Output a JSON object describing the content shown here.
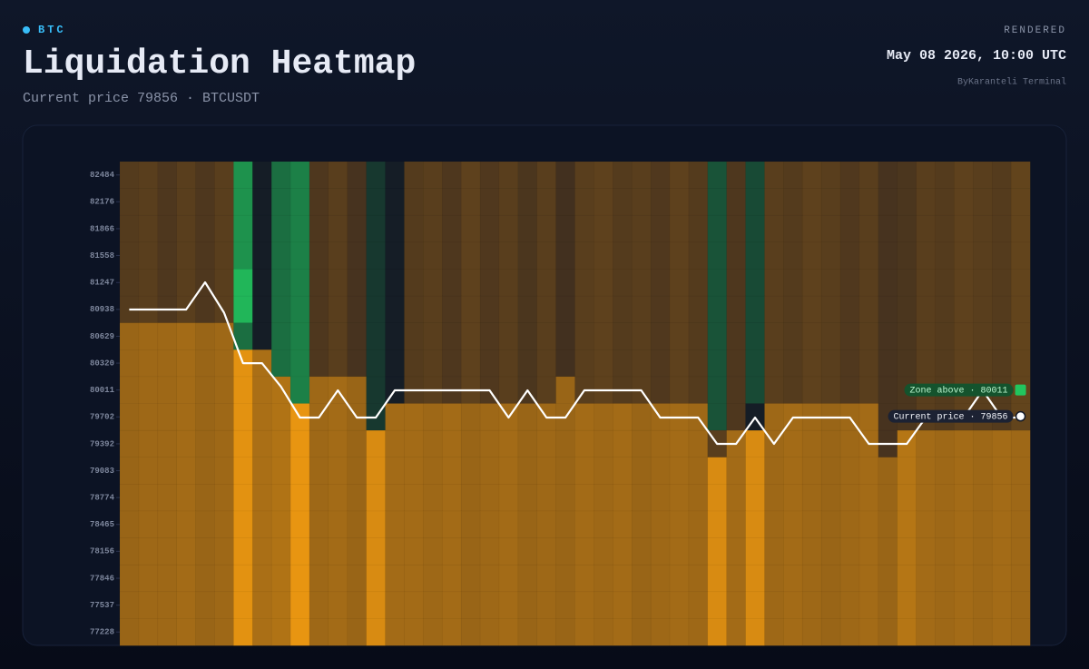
{
  "header": {
    "symbol": "BTC",
    "title": "Liquidation Heatmap",
    "subtitle": "Current price 79856 · BTCUSDT",
    "status": "RENDERED",
    "timestamp": "May 08 2026, 10:00 UTC",
    "source": "ByKaranteli Terminal"
  },
  "chart_data": {
    "type": "heatmap",
    "ylim": [
      77074,
      82638
    ],
    "yticks": [
      82484,
      82176,
      81866,
      81558,
      81247,
      80938,
      80629,
      80320,
      80011,
      79702,
      79392,
      79083,
      78774,
      78465,
      78156,
      77846,
      77537,
      77228
    ],
    "colorscale": {
      "zero": "#141423",
      "positive": "#faa00f",
      "negative": "#22c85f"
    },
    "z": [
      [
        28,
        30,
        25,
        30,
        25,
        30,
        -70,
        -5,
        -50,
        -60,
        25,
        30,
        22,
        -20,
        -5,
        28,
        30,
        25,
        32,
        26,
        30,
        24,
        30,
        20,
        30,
        32,
        28,
        30,
        26,
        32,
        28,
        -35,
        25,
        -30,
        30,
        28,
        32,
        30,
        26,
        30,
        22,
        24,
        30,
        28,
        32,
        30,
        28,
        34
      ],
      [
        28,
        30,
        25,
        30,
        25,
        30,
        -70,
        -5,
        -50,
        -60,
        25,
        30,
        22,
        -20,
        -5,
        28,
        30,
        25,
        32,
        26,
        30,
        24,
        30,
        20,
        30,
        32,
        28,
        30,
        26,
        32,
        28,
        -35,
        25,
        -30,
        30,
        28,
        32,
        30,
        26,
        30,
        22,
        24,
        30,
        28,
        32,
        30,
        28,
        34
      ],
      [
        28,
        30,
        25,
        30,
        25,
        30,
        -70,
        -5,
        -50,
        -60,
        25,
        30,
        22,
        -20,
        -5,
        28,
        30,
        25,
        32,
        26,
        30,
        24,
        30,
        20,
        30,
        32,
        28,
        30,
        26,
        32,
        28,
        -35,
        25,
        -30,
        30,
        28,
        32,
        30,
        26,
        30,
        22,
        24,
        30,
        28,
        32,
        30,
        28,
        34
      ],
      [
        28,
        30,
        25,
        30,
        25,
        30,
        -70,
        -5,
        -50,
        -60,
        25,
        30,
        22,
        -20,
        -5,
        28,
        30,
        25,
        32,
        26,
        30,
        24,
        30,
        20,
        30,
        32,
        28,
        30,
        26,
        32,
        28,
        -35,
        25,
        -30,
        30,
        28,
        32,
        30,
        26,
        30,
        22,
        24,
        30,
        28,
        32,
        30,
        28,
        34
      ],
      [
        28,
        30,
        25,
        30,
        25,
        30,
        -90,
        -5,
        -50,
        -60,
        25,
        30,
        22,
        -20,
        -5,
        28,
        30,
        25,
        32,
        26,
        30,
        24,
        30,
        20,
        30,
        32,
        28,
        30,
        26,
        32,
        28,
        -35,
        25,
        -30,
        30,
        28,
        32,
        30,
        26,
        30,
        22,
        24,
        30,
        28,
        32,
        30,
        28,
        34
      ],
      [
        28,
        30,
        25,
        30,
        25,
        30,
        -90,
        -5,
        -50,
        -60,
        25,
        30,
        22,
        -20,
        -5,
        28,
        30,
        25,
        32,
        26,
        30,
        24,
        30,
        20,
        30,
        32,
        28,
        30,
        26,
        32,
        28,
        -35,
        25,
        -30,
        30,
        28,
        32,
        30,
        26,
        30,
        22,
        24,
        30,
        28,
        32,
        30,
        28,
        34
      ],
      [
        58,
        60,
        60,
        62,
        58,
        60,
        -50,
        -5,
        -50,
        -60,
        25,
        30,
        22,
        -20,
        -5,
        28,
        30,
        25,
        32,
        26,
        30,
        24,
        30,
        20,
        30,
        32,
        28,
        30,
        26,
        32,
        28,
        -35,
        25,
        -30,
        30,
        28,
        32,
        30,
        26,
        30,
        22,
        24,
        30,
        28,
        32,
        30,
        28,
        34
      ],
      [
        58,
        60,
        60,
        62,
        58,
        60,
        90,
        65,
        -50,
        -60,
        25,
        30,
        22,
        -20,
        -5,
        28,
        30,
        25,
        32,
        26,
        30,
        24,
        30,
        20,
        30,
        32,
        28,
        30,
        26,
        32,
        28,
        -35,
        25,
        -30,
        30,
        28,
        32,
        30,
        26,
        30,
        22,
        24,
        30,
        28,
        32,
        30,
        28,
        34
      ],
      [
        58,
        60,
        60,
        62,
        58,
        60,
        90,
        65,
        68,
        -60,
        60,
        62,
        58,
        -20,
        -5,
        28,
        30,
        25,
        32,
        26,
        30,
        24,
        30,
        58,
        30,
        32,
        28,
        30,
        26,
        32,
        28,
        -35,
        25,
        -30,
        30,
        28,
        32,
        30,
        26,
        30,
        22,
        24,
        30,
        28,
        32,
        30,
        28,
        34
      ],
      [
        58,
        60,
        60,
        62,
        58,
        60,
        90,
        65,
        68,
        92,
        60,
        62,
        58,
        -20,
        62,
        62,
        60,
        62,
        58,
        60,
        62,
        58,
        60,
        58,
        62,
        60,
        62,
        58,
        60,
        62,
        60,
        -35,
        25,
        -5,
        60,
        62,
        60,
        58,
        60,
        62,
        22,
        24,
        30,
        28,
        32,
        30,
        28,
        34
      ],
      [
        58,
        60,
        60,
        62,
        58,
        60,
        90,
        65,
        68,
        92,
        60,
        62,
        58,
        85,
        62,
        62,
        60,
        62,
        58,
        60,
        62,
        58,
        60,
        58,
        62,
        60,
        62,
        58,
        60,
        62,
        60,
        30,
        62,
        85,
        60,
        62,
        60,
        58,
        60,
        62,
        22,
        70,
        62,
        60,
        62,
        60,
        62,
        60
      ],
      [
        58,
        60,
        60,
        62,
        58,
        60,
        90,
        65,
        68,
        92,
        60,
        62,
        58,
        85,
        62,
        62,
        60,
        62,
        58,
        60,
        62,
        58,
        60,
        58,
        62,
        60,
        62,
        58,
        60,
        62,
        60,
        85,
        62,
        85,
        60,
        62,
        60,
        58,
        60,
        62,
        58,
        70,
        62,
        60,
        62,
        60,
        62,
        60
      ],
      [
        58,
        60,
        60,
        62,
        58,
        60,
        90,
        65,
        68,
        92,
        60,
        62,
        58,
        85,
        62,
        62,
        60,
        62,
        58,
        60,
        62,
        58,
        60,
        58,
        62,
        60,
        62,
        58,
        60,
        62,
        60,
        85,
        62,
        85,
        60,
        62,
        60,
        58,
        60,
        62,
        58,
        70,
        62,
        60,
        62,
        60,
        62,
        60
      ],
      [
        58,
        60,
        60,
        62,
        58,
        60,
        90,
        65,
        68,
        92,
        60,
        62,
        58,
        85,
        62,
        62,
        60,
        62,
        58,
        60,
        62,
        58,
        60,
        58,
        62,
        60,
        62,
        58,
        60,
        62,
        60,
        85,
        62,
        85,
        60,
        62,
        60,
        58,
        60,
        62,
        58,
        70,
        62,
        60,
        62,
        60,
        62,
        60
      ],
      [
        58,
        60,
        60,
        62,
        58,
        60,
        90,
        65,
        68,
        92,
        60,
        62,
        58,
        85,
        62,
        62,
        60,
        62,
        58,
        60,
        62,
        58,
        60,
        58,
        62,
        60,
        62,
        58,
        60,
        62,
        60,
        85,
        62,
        85,
        60,
        62,
        60,
        58,
        60,
        62,
        58,
        70,
        62,
        60,
        62,
        60,
        62,
        60
      ],
      [
        58,
        60,
        60,
        62,
        58,
        60,
        90,
        65,
        68,
        92,
        60,
        62,
        58,
        85,
        62,
        62,
        60,
        62,
        58,
        60,
        62,
        58,
        60,
        58,
        62,
        60,
        62,
        58,
        60,
        62,
        60,
        85,
        62,
        85,
        60,
        62,
        60,
        58,
        60,
        62,
        58,
        70,
        62,
        60,
        62,
        60,
        62,
        60
      ],
      [
        58,
        60,
        60,
        62,
        58,
        60,
        90,
        65,
        68,
        92,
        60,
        62,
        58,
        85,
        62,
        62,
        60,
        62,
        58,
        60,
        62,
        58,
        60,
        58,
        62,
        60,
        62,
        58,
        60,
        62,
        60,
        85,
        62,
        85,
        60,
        62,
        60,
        58,
        60,
        62,
        58,
        70,
        62,
        60,
        62,
        60,
        62,
        60
      ],
      [
        58,
        60,
        60,
        62,
        58,
        60,
        90,
        65,
        68,
        92,
        60,
        62,
        58,
        85,
        62,
        62,
        60,
        62,
        58,
        60,
        62,
        58,
        60,
        58,
        62,
        60,
        62,
        58,
        60,
        62,
        60,
        85,
        62,
        85,
        60,
        62,
        60,
        58,
        60,
        62,
        58,
        70,
        62,
        60,
        62,
        60,
        62,
        60
      ]
    ],
    "price": {
      "color": "#ffffff",
      "values": [
        80936,
        80936,
        80936,
        80936,
        81250,
        80900,
        80320,
        80320,
        80050,
        79694,
        79694,
        80007,
        79694,
        79694,
        80007,
        80007,
        80007,
        80007,
        80007,
        80007,
        79694,
        80007,
        79694,
        79694,
        80007,
        80007,
        80007,
        80007,
        79694,
        79694,
        79694,
        79391,
        79391,
        79694,
        79391,
        79694,
        79694,
        79694,
        79694,
        79391,
        79391,
        79391,
        79694,
        79694,
        79694,
        80007,
        79694,
        79694
      ]
    },
    "annotations": [
      {
        "text": "Zone above · 80011",
        "color": "#22c55e"
      },
      {
        "text": "Current price · 79856",
        "color": "#ffffff"
      }
    ]
  }
}
